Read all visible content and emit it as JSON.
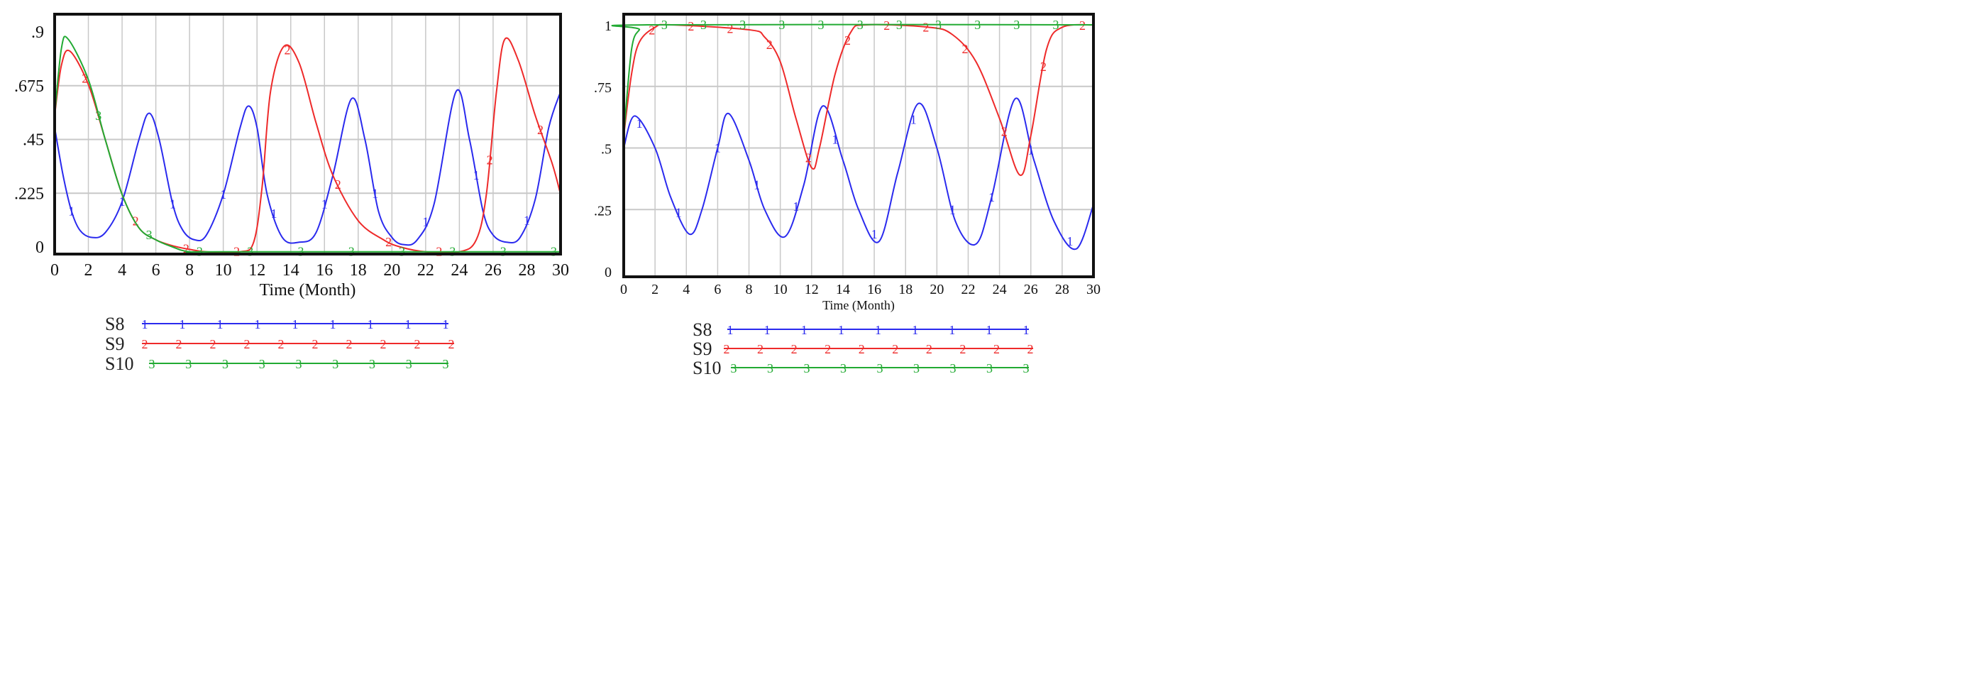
{
  "chart_data": [
    {
      "type": "line",
      "xlabel": "Time (Month)",
      "ylabel": "",
      "xlim": [
        0,
        30
      ],
      "ylim": [
        0,
        0.9
      ],
      "x_ticks": [
        "0",
        "2",
        "4",
        "6",
        "8",
        "10",
        "12",
        "14",
        "16",
        "18",
        "20",
        "22",
        "24",
        "26",
        "28",
        "30"
      ],
      "y_ticks": [
        "0",
        ".225",
        ".45",
        ".675",
        ".9"
      ],
      "grid": true,
      "legend_position": "bottom",
      "series": [
        {
          "name": "S8",
          "marker": "1",
          "color": "#2a2aee",
          "x": [
            0,
            0.5,
            1,
            1.5,
            2.2,
            3,
            4,
            5,
            5.6,
            6.2,
            7,
            7.6,
            8.3,
            9,
            10,
            11,
            11.5,
            12,
            12.6,
            13.5,
            14.5,
            15.5,
            16.5,
            17.6,
            18.4,
            19.2,
            20,
            20.7,
            21.5,
            22.5,
            23.8,
            24.6,
            25.4,
            26,
            26.8,
            27.6,
            28.5,
            29.3,
            30
          ],
          "y": [
            0.5,
            0.3,
            0.15,
            0.07,
            0.04,
            0.06,
            0.19,
            0.45,
            0.56,
            0.45,
            0.18,
            0.07,
            0.03,
            0.05,
            0.22,
            0.5,
            0.59,
            0.5,
            0.22,
            0.04,
            0.02,
            0.06,
            0.3,
            0.62,
            0.45,
            0.15,
            0.04,
            0.01,
            0.03,
            0.18,
            0.65,
            0.45,
            0.15,
            0.05,
            0.02,
            0.04,
            0.2,
            0.5,
            0.65
          ]
        },
        {
          "name": "S9",
          "marker": "2",
          "color": "#ee2a2a",
          "x": [
            0,
            0.4,
            0.9,
            2,
            3,
            4,
            5,
            6,
            7,
            8,
            9,
            11,
            11.8,
            12.3,
            12.8,
            13.6,
            14.5,
            15.5,
            16.5,
            18,
            19.5,
            20.5,
            22,
            24,
            25,
            25.6,
            26.2,
            26.7,
            27.5,
            28.5,
            29.5,
            30
          ],
          "y": [
            0.55,
            0.76,
            0.82,
            0.68,
            0.45,
            0.22,
            0.08,
            0.03,
            0.005,
            -0.01,
            -0.02,
            -0.02,
            0.02,
            0.25,
            0.65,
            0.84,
            0.77,
            0.52,
            0.3,
            0.11,
            0.03,
            0.0,
            -0.02,
            -0.02,
            0.03,
            0.22,
            0.65,
            0.87,
            0.78,
            0.55,
            0.35,
            0.22
          ]
        },
        {
          "name": "S10",
          "marker": "3",
          "color": "#22aa33",
          "x": [
            0,
            0.4,
            0.8,
            2,
            3,
            4,
            5,
            6,
            7,
            8,
            10,
            30
          ],
          "y": [
            0.55,
            0.83,
            0.87,
            0.7,
            0.45,
            0.22,
            0.08,
            0.03,
            0.0,
            -0.02,
            -0.02,
            -0.02
          ]
        }
      ]
    },
    {
      "type": "line",
      "xlabel": "Time (Month)",
      "ylabel": "",
      "xlim": [
        0,
        30
      ],
      "ylim": [
        0,
        1
      ],
      "x_ticks": [
        "0",
        "2",
        "4",
        "6",
        "8",
        "10",
        "12",
        "14",
        "16",
        "18",
        "20",
        "22",
        "24",
        "26",
        "28",
        "30"
      ],
      "y_ticks": [
        "0",
        ".25",
        ".5",
        ".75",
        "1"
      ],
      "grid": true,
      "legend_position": "bottom",
      "series": [
        {
          "name": "S8",
          "marker": "1",
          "color": "#2a2aee",
          "x": [
            0,
            0.7,
            2,
            3,
            4.2,
            5,
            6,
            6.7,
            8,
            9,
            10.3,
            11.5,
            12.7,
            14,
            15,
            16.3,
            17.5,
            18.8,
            20,
            21.2,
            22.5,
            23.5,
            25,
            26.2,
            27.5,
            28.9,
            30
          ],
          "y": [
            0.5,
            0.63,
            0.5,
            0.3,
            0.15,
            0.25,
            0.5,
            0.64,
            0.45,
            0.25,
            0.14,
            0.35,
            0.67,
            0.45,
            0.25,
            0.12,
            0.4,
            0.68,
            0.5,
            0.2,
            0.11,
            0.3,
            0.7,
            0.45,
            0.2,
            0.09,
            0.27
          ]
        },
        {
          "name": "S9",
          "marker": "2",
          "color": "#ee2a2a",
          "x": [
            0,
            0.5,
            1,
            2,
            3,
            8,
            9,
            10,
            11,
            12,
            12.5,
            13.5,
            14.5,
            15.5,
            19.5,
            21,
            22.5,
            24,
            25.3,
            26,
            27,
            28,
            30
          ],
          "y": [
            0.55,
            0.8,
            0.93,
            0.99,
            1.0,
            0.98,
            0.95,
            0.85,
            0.62,
            0.42,
            0.5,
            0.8,
            0.97,
            1.0,
            0.99,
            0.96,
            0.85,
            0.62,
            0.39,
            0.55,
            0.9,
            0.99,
            1.0
          ]
        },
        {
          "name": "S10",
          "marker": "3",
          "color": "#22aa33",
          "x": [
            0,
            0.5,
            1,
            1.5,
            30
          ],
          "y": [
            0.55,
            0.9,
            0.98,
            1.0,
            1.0
          ]
        }
      ]
    }
  ]
}
